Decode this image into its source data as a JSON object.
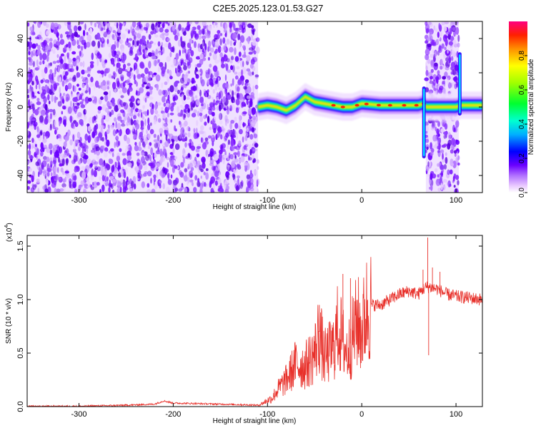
{
  "title": "C2E5.2025.123.01.53.G27",
  "chart_data": [
    {
      "type": "heatmap",
      "xlabel": "Height of straight line (km)",
      "ylabel": "Frequency (Hz)",
      "xlim": [
        -355,
        128
      ],
      "ylim": [
        -50,
        50
      ],
      "xticks": [
        -300,
        -200,
        -100,
        0,
        100
      ],
      "yticks": [
        -40,
        -20,
        0,
        20,
        40
      ],
      "colorbar": {
        "label": "Normalized spectral amplitude",
        "range": [
          0,
          1
        ],
        "ticks": [
          "0.0",
          "0.2",
          "0.4",
          "0.6",
          "0.8"
        ],
        "tick_values": [
          0,
          0.2,
          0.4,
          0.6,
          0.8
        ],
        "colormap": "rainbow"
      },
      "noise_regions": [
        [
          -355,
          -110
        ],
        [
          68,
          103
        ]
      ],
      "ridge": {
        "x": [
          -110,
          -100,
          -90,
          -80,
          -70,
          -60,
          -50,
          -40,
          -30,
          -20,
          -10,
          0,
          20,
          40,
          60,
          66,
          68,
          100,
          106,
          128
        ],
        "y": [
          0,
          1,
          0,
          -2,
          1,
          6,
          3,
          2,
          1,
          0,
          0,
          2,
          1,
          1,
          1,
          2,
          0,
          0,
          1,
          1
        ]
      },
      "spikes": [
        {
          "x": 66,
          "ymin": -30,
          "ymax": 12
        },
        {
          "x": 104,
          "ymin": -5,
          "ymax": 32
        }
      ]
    },
    {
      "type": "line",
      "xlabel": "Height of straight line (km)",
      "ylabel": "SNR (10 * v/v)",
      "y_multiplier": "(x10",
      "y_multiplier_exp": "4",
      "xlim": [
        -355,
        128
      ],
      "ylim": [
        0,
        1.6
      ],
      "xticks": [
        -300,
        -200,
        -100,
        0,
        100
      ],
      "yticks": [
        "0.0",
        "0.5",
        "1.0",
        "1.5"
      ],
      "ytick_values": [
        0,
        0.5,
        1.0,
        1.5
      ],
      "color": "#e8302a",
      "series": [
        {
          "x": [
            -355,
            -300,
            -250,
            -220,
            -210,
            -200,
            -150,
            -110,
            -95,
            -90,
            -80,
            -70,
            -60,
            -50,
            -45,
            -40,
            -30,
            -25,
            -20,
            -15,
            -10,
            -5,
            0,
            5,
            10,
            20,
            30,
            40,
            50,
            60,
            65,
            70,
            80,
            90,
            100,
            110,
            128
          ],
          "y": [
            0.0,
            0.0,
            0.01,
            0.02,
            0.05,
            0.03,
            0.02,
            0.01,
            0.08,
            0.15,
            0.25,
            0.4,
            0.38,
            0.5,
            0.7,
            0.45,
            0.55,
            0.75,
            0.6,
            0.5,
            0.65,
            0.8,
            0.7,
            0.9,
            0.95,
            0.95,
            1.0,
            1.05,
            1.08,
            1.05,
            1.1,
            1.12,
            1.1,
            1.05,
            1.03,
            1.02,
            1.0
          ]
        }
      ]
    }
  ]
}
